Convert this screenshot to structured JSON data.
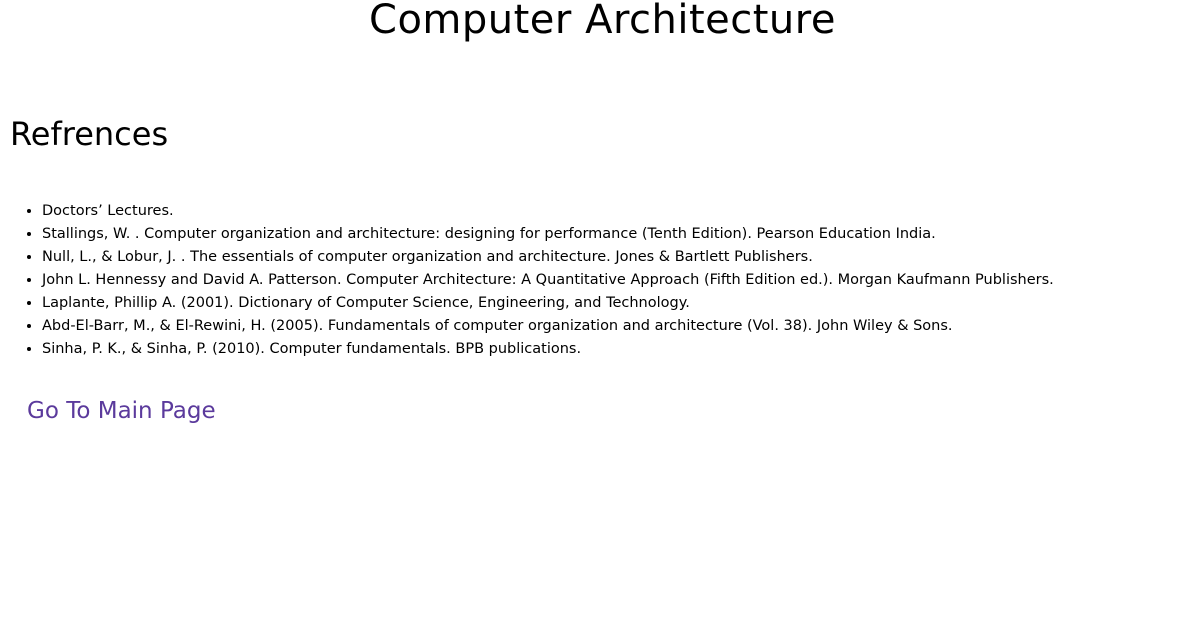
{
  "header": {
    "title": "Computer Architecture"
  },
  "references": {
    "heading": "Refrences",
    "items": [
      "Doctors’ Lectures.",
      "Stallings, W. . Computer organization and architecture: designing for performance (Tenth Edition). Pearson Education India.",
      "Null, L., & Lobur, J. . The essentials of computer organization and architecture. Jones & Bartlett Publishers.",
      "John L. Hennessy and David A. Patterson. Computer Architecture: A Quantitative Approach (Fifth Edition ed.). Morgan Kaufmann Publishers.",
      "Laplante, Phillip A. (2001). Dictionary of Computer Science, Engineering, and Technology.",
      "Abd-El-Barr, M., & El-Rewini, H. (2005). Fundamentals of computer organization and architecture (Vol. 38). John Wiley & Sons.",
      "Sinha, P. K., & Sinha, P. (2010). Computer fundamentals. BPB publications."
    ]
  },
  "navigation": {
    "main_page_link": "Go To Main Page"
  },
  "colors": {
    "link": "#5b3a9c",
    "text": "#000000",
    "background": "#ffffff"
  }
}
